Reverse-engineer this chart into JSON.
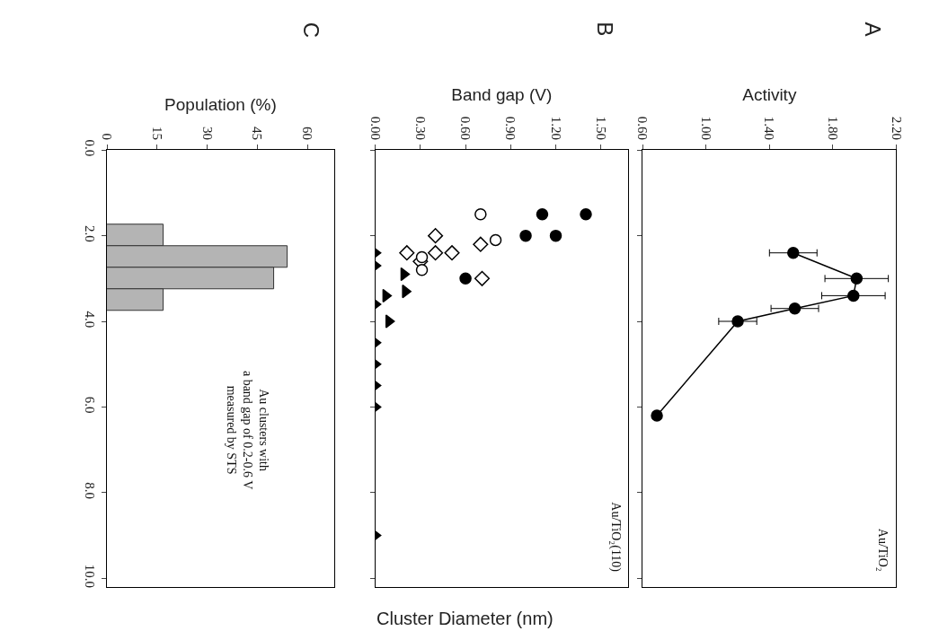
{
  "chart_data": [
    {
      "type": "histogram",
      "orientation": "horizontal",
      "title": "C",
      "xlabel": "Population (%)",
      "ylabel": "Cluster Diameter (nm)",
      "bins": [
        1.75,
        2.25,
        2.75,
        3.25,
        3.75
      ],
      "values": [
        17,
        54,
        50,
        17
      ],
      "color": "#b4b4b4",
      "xlim": [
        0,
        68
      ],
      "xticks": [
        0,
        15,
        30,
        45,
        60
      ],
      "ylim": [
        10.2,
        0
      ],
      "yticks": [
        {
          "value": 0,
          "label": "0.0"
        },
        {
          "value": 2,
          "label": "2.0"
        },
        {
          "value": 4,
          "label": "4.0"
        },
        {
          "value": 6,
          "label": "6.0"
        },
        {
          "value": 8,
          "label": "8.0"
        },
        {
          "value": 10,
          "label": "10.0"
        }
      ],
      "annotations": [
        "Au clusters with\na band gap of 0.2-0.6 V\nmeasured by STS"
      ]
    },
    {
      "type": "scatter",
      "title": "B",
      "xlabel": "Band gap (V)",
      "xlim": [
        0,
        1.68
      ],
      "xticks": [
        {
          "value": 0,
          "label": "0.00"
        },
        {
          "value": 0.3,
          "label": "0.30"
        },
        {
          "value": 0.6,
          "label": "0.60"
        },
        {
          "value": 0.9,
          "label": "0.90"
        },
        {
          "value": 1.2,
          "label": "1.20"
        },
        {
          "value": 1.5,
          "label": "1.50"
        }
      ],
      "ylim": [
        10.2,
        0
      ],
      "yticks": [
        {
          "value": 0,
          "label": null
        },
        {
          "value": 2,
          "label": null
        },
        {
          "value": 4,
          "label": null
        },
        {
          "value": 6,
          "label": null
        },
        {
          "value": 8,
          "label": null
        },
        {
          "value": 10,
          "label": null
        }
      ],
      "tick_labels": "x",
      "annotations": [
        "Au/TiO₂(110)"
      ],
      "series": [
        {
          "color": "#000000",
          "marker": "circle",
          "x": [
            1.4,
            1.11,
            1.2,
            1.0,
            0.6
          ],
          "values": [
            1.5,
            1.5,
            2.0,
            2.0,
            3.0
          ]
        },
        {
          "color": "#ffffff",
          "marker": "diamond",
          "x": [
            0.4,
            0.7,
            0.21,
            0.4,
            0.51,
            0.3,
            0.71
          ],
          "values": [
            2.0,
            2.2,
            2.4,
            2.4,
            2.4,
            2.6,
            3.0
          ]
        },
        {
          "color": "#ffffff",
          "marker": "circle",
          "x": [
            0.7,
            0.8,
            0.31,
            0.31
          ],
          "values": [
            1.5,
            2.1,
            2.5,
            2.8
          ]
        },
        {
          "color": "#000000",
          "marker": "triangle",
          "x": [
            0,
            0,
            0.19,
            0.2,
            0.07,
            0,
            0.09,
            0,
            0,
            0,
            0,
            0
          ],
          "values": [
            2.4,
            2.7,
            2.9,
            3.3,
            3.4,
            3.6,
            4.0,
            4.5,
            5.0,
            5.5,
            6.0,
            9.0
          ]
        }
      ]
    },
    {
      "type": "line",
      "title": "A",
      "xlabel": "Activity",
      "xlim": [
        0.6,
        2.2
      ],
      "xticks": [
        {
          "value": 0.6,
          "label": "0.60"
        },
        {
          "value": 1.0,
          "label": "1.00"
        },
        {
          "value": 1.4,
          "label": "1.40"
        },
        {
          "value": 1.8,
          "label": "1.80"
        },
        {
          "value": 2.2,
          "label": "2.20"
        }
      ],
      "ylim": [
        10.2,
        0
      ],
      "yticks": [
        {
          "value": 0,
          "label": null
        },
        {
          "value": 2,
          "label": null
        },
        {
          "value": 4,
          "label": null
        },
        {
          "value": 6,
          "label": null
        },
        {
          "value": 8,
          "label": null
        },
        {
          "value": 10,
          "label": null
        }
      ],
      "tick_labels": "x",
      "marker": "circle",
      "line_style": "solid",
      "annotations": [
        "Au/TiO₂"
      ],
      "series": [
        {
          "color": "#000000",
          "x": [
            1.55,
            1.95,
            1.93,
            1.56,
            1.2,
            0.69
          ],
          "values": [
            2.4,
            3.0,
            3.4,
            3.7,
            4.0,
            6.2
          ],
          "xerrors": [
            0.15,
            0.2,
            0.2,
            0.15,
            0.12,
            null
          ]
        }
      ]
    }
  ]
}
